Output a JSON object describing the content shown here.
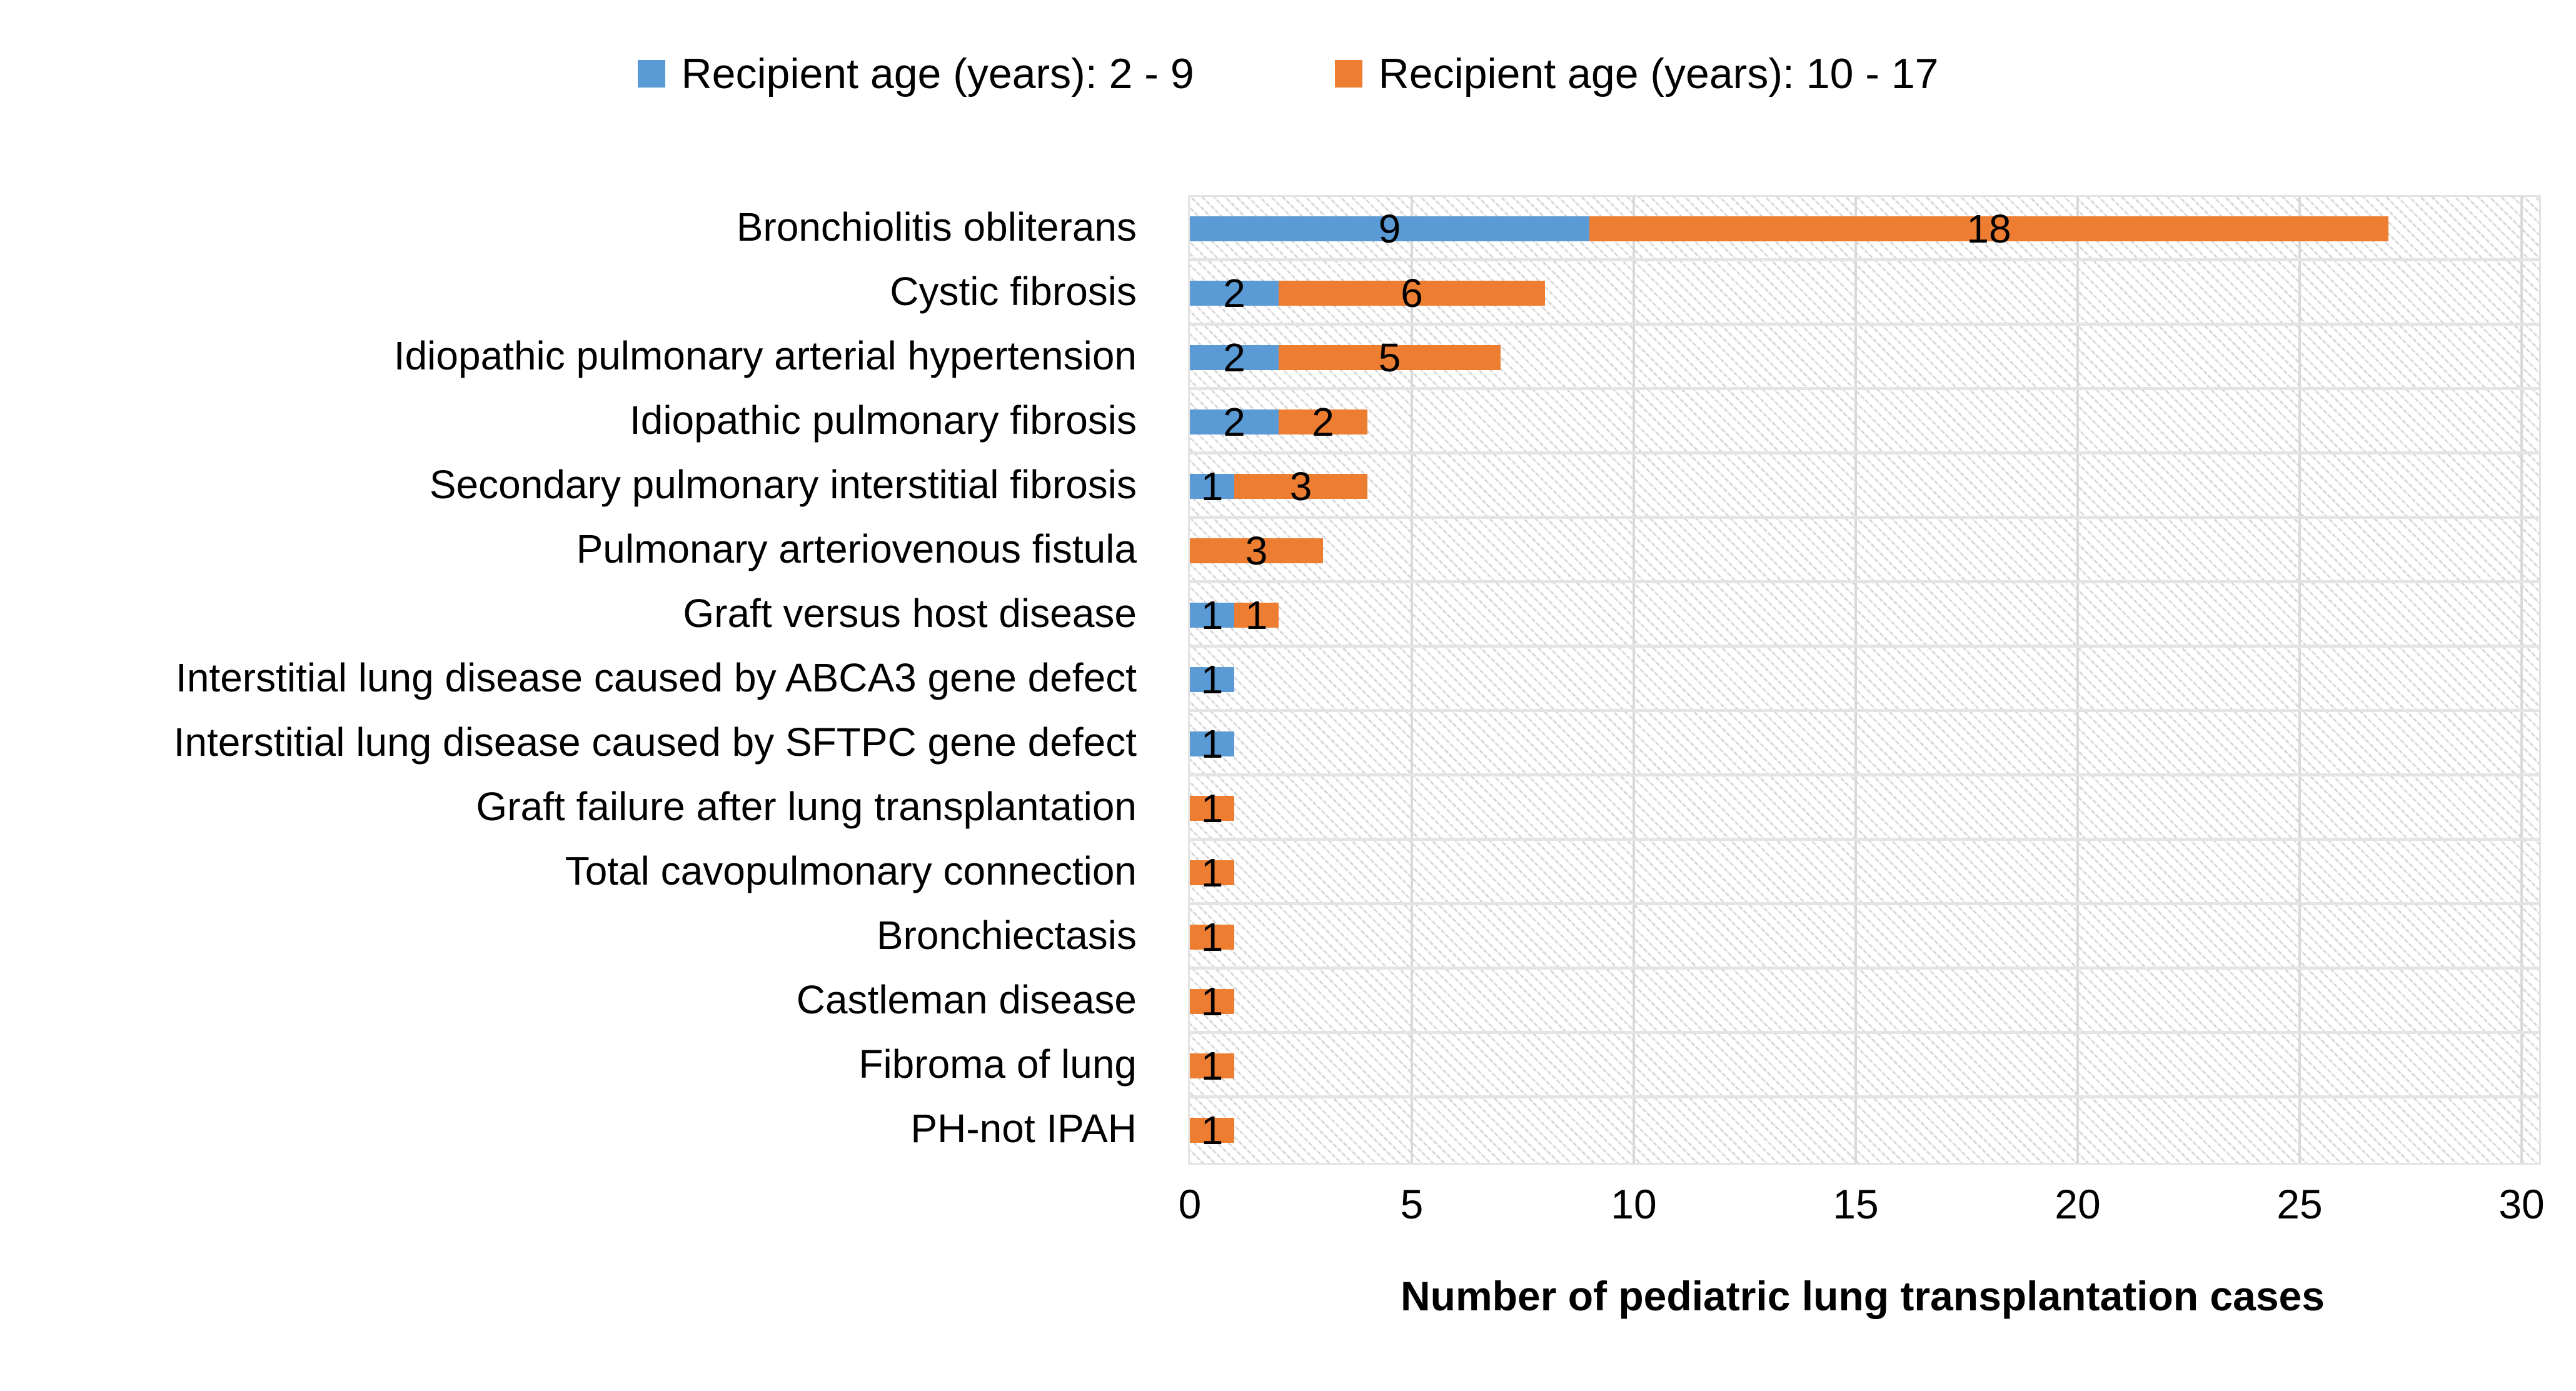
{
  "legend": {
    "items": [
      {
        "label": "Recipient age (years): 2 - 9",
        "color": "#5B9BD5"
      },
      {
        "label": "Recipient age (years): 10 - 17",
        "color": "#ED7D31"
      }
    ]
  },
  "chart_data": {
    "type": "bar",
    "orientation": "horizontal",
    "stacked": true,
    "title": "",
    "xlabel": "Number of pediatric lung transplantation cases",
    "ylabel": "",
    "xlim": [
      0,
      30
    ],
    "xticks": [
      0,
      5,
      10,
      15,
      20,
      25,
      30
    ],
    "grid": "vertical-major",
    "plot_background": "light-diagonal-hatch",
    "legend_position": "top",
    "data_labels": true,
    "categories": [
      "Bronchiolitis obliterans",
      "Cystic fibrosis",
      "Idiopathic pulmonary arterial hypertension",
      "Idiopathic pulmonary fibrosis",
      "Secondary pulmonary interstitial fibrosis",
      "Pulmonary arteriovenous fistula",
      "Graft versus host disease",
      "Interstitial lung disease caused by ABCA3 gene defect",
      "Interstitial lung disease caused by SFTPC gene defect",
      "Graft failure after lung transplantation",
      "Total cavopulmonary connection",
      "Bronchiectasis",
      "Castleman disease",
      "Fibroma of lung",
      "PH-not IPAH"
    ],
    "series": [
      {
        "name": "Recipient age (years): 2 - 9",
        "color": "#5B9BD5",
        "values": [
          9,
          2,
          2,
          2,
          1,
          0,
          1,
          1,
          1,
          0,
          0,
          0,
          0,
          0,
          0
        ]
      },
      {
        "name": "Recipient age (years): 10 - 17",
        "color": "#ED7D31",
        "values": [
          18,
          6,
          5,
          2,
          3,
          3,
          1,
          0,
          0,
          1,
          1,
          1,
          1,
          1,
          1
        ]
      }
    ]
  }
}
